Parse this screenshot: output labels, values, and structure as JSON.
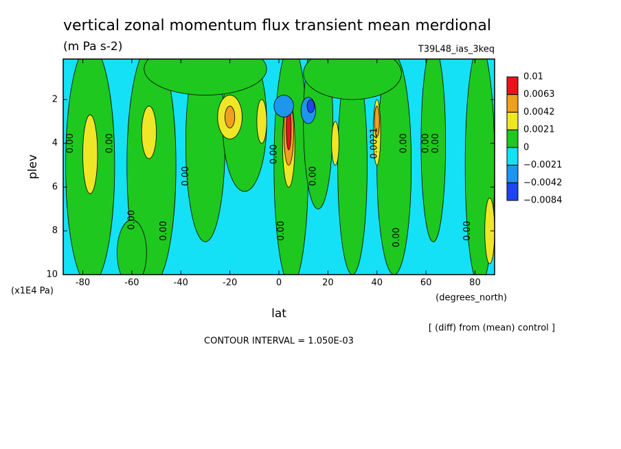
{
  "chart_data": {
    "type": "contour",
    "title": "vertical zonal momentum flux transient mean merdional",
    "subtitle": "(m Pa s-2)",
    "run_label": "T39L48_ias_3keq",
    "x_label": "lat",
    "x_unit": "(degrees_north)",
    "y_label": "plev",
    "y_unit": "(x1E4 Pa)",
    "note": "[ (diff) from (mean) control ]",
    "contour_interval": "CONTOUR INTERVAL = 1.050E-03",
    "xlim": [
      -88,
      88
    ],
    "xticks": [
      -80,
      -60,
      -40,
      -20,
      0,
      20,
      40,
      60,
      80
    ],
    "ylim": [
      0.15,
      10
    ],
    "y_inverted": true,
    "yticks": [
      2,
      4,
      6,
      8,
      10
    ],
    "levels": [
      0.01,
      0.0063,
      0.0042,
      0.0021,
      0,
      -0.0021,
      -0.0042,
      -0.0084
    ],
    "level_labels": [
      "0.01",
      "0.0063",
      "0.0042",
      "0.0021",
      "0",
      "−0.0021",
      "−0.0042",
      "−0.0084"
    ],
    "colors": [
      "#e8141a",
      "#f0a01e",
      "#f0e628",
      "#1ec81e",
      "#14e1f5",
      "#1e96f0",
      "#1e46f0"
    ],
    "contour_labels": [
      "0.00",
      "0.00",
      "0.00",
      "0.00",
      "0.00",
      "0.00",
      "0.00",
      "0.00",
      "0.00",
      "0.0021",
      "0.00",
      "0.00",
      "0.00",
      "0.00"
    ]
  }
}
